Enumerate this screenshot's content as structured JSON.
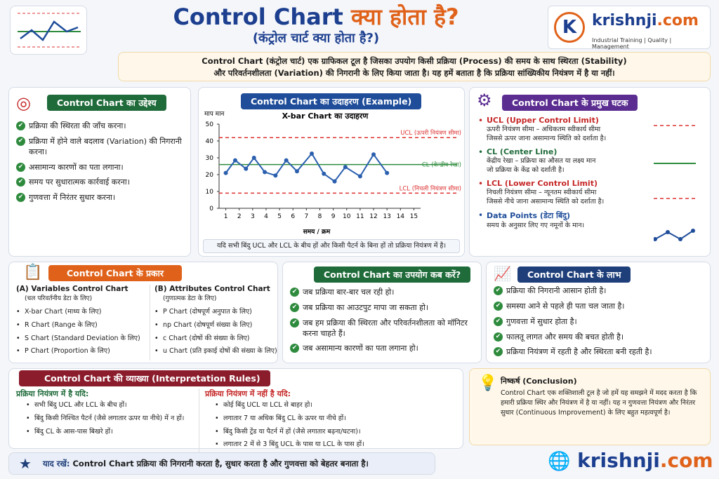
{
  "header": {
    "title_en": "Control Chart",
    "title_hi": "क्या होता है?",
    "subtitle": "(कंट्रोल चार्ट क्या होता है?)",
    "intro": [
      "Control Chart (कंट्रोल चार्ट) एक ग्राफिकल टूल है जिसका उपयोग किसी प्रक्रिया (Process) की समय के साथ स्थिरता (Stability)",
      "और परिवर्तनशीलता (Variation) की निगरानी के लिए किया जाता है। यह हमें बताता है कि प्रक्रिया सांख्यिकीय नियंत्रण में है या नहीं।"
    ]
  },
  "logo": {
    "letter": "K",
    "brand": "krishnji",
    "tld": ".com",
    "tagline": "Industrial Training | Quality | Management"
  },
  "objectives": {
    "title": "Control Chart का उद्देश्य",
    "items": [
      "प्रक्रिया की स्थिरता की जाँच करना।",
      "प्रक्रिया में होने वाले बदलाव (Variation) की निगरानी करना।",
      "असामान्य कारणों का पता लगाना।",
      "समय पर सुधारात्मक कार्रवाई करना।",
      "गुणवत्ता में निरंतर सुधार करना।"
    ]
  },
  "example": {
    "title": "Control Chart का उदाहरण (Example)",
    "note": "यदि सभी बिंदु UCL और LCL के बीच हों और किसी पैटर्न के बिना हों तो प्रक्रिया नियंत्रण में है।"
  },
  "chart_data": {
    "type": "line",
    "title": "X-bar Chart का उदाहरण",
    "y_label": "माप मान",
    "x_label": "समय / क्रम",
    "x": [
      1,
      1.7,
      2.5,
      3.1,
      3.9,
      4.7,
      5.5,
      6.3,
      7.4,
      8.3,
      9.1,
      9.9,
      11,
      12,
      13
    ],
    "series": [
      {
        "color": "#2a5fae",
        "values": [
          21,
          28.5,
          23.5,
          30,
          21.5,
          19.5,
          28.5,
          22,
          32.5,
          20.5,
          16,
          24.5,
          19,
          32,
          21
        ]
      }
    ],
    "ucl": 42,
    "cl": 26,
    "lcl": 9,
    "ucl_label": "UCL (ऊपरी नियंत्रण सीमा)",
    "cl_label": "CL (केन्द्रीय रेखा)",
    "lcl_label": "LCL (निचली नियंत्रण सीमा)",
    "xlim": [
      0.5,
      15.5
    ],
    "xticks": [
      1,
      2,
      3,
      4,
      5,
      6,
      7,
      8,
      9,
      10,
      11,
      12,
      13,
      14,
      15
    ],
    "ylim": [
      0,
      50
    ],
    "yticks": [
      0,
      10,
      20,
      30,
      40,
      50
    ]
  },
  "components": {
    "title": "Control Chart के प्रमुख घटक",
    "items": [
      {
        "name": "UCL (Upper Control Limit)",
        "desc": [
          "ऊपरी नियंत्रण सीमा – अधिकतम स्वीकार्य सीमा",
          "जिससे ऊपर जाना असामान्य स्थिति को दर्शाता है।"
        ]
      },
      {
        "name": "CL (Center Line)",
        "desc": [
          "केंद्रीय रेखा – प्रक्रिया का औसत या लक्ष्य मान",
          "जो प्रक्रिया के केंद्र को दर्शाती है।"
        ]
      },
      {
        "name": "LCL (Lower Control Limit)",
        "desc": [
          "निचली नियंत्रण सीमा – न्यूनतम स्वीकार्य सीमा",
          "जिससे नीचे जाना असामान्य स्थिति को दर्शाता है।"
        ]
      },
      {
        "name": "Data Points (डेटा बिंदु)",
        "desc": [
          "समय के अनुसार लिए गए नमूनों के मान।"
        ]
      }
    ]
  },
  "types": {
    "title": "Control Chart के प्रकार",
    "variables": {
      "heading": "(A) Variables Control Chart",
      "sub": "(चल परिवर्तनीय डेटा के लिए)",
      "items": [
        "X-bar Chart (माध्य के लिए)",
        "R Chart (Range के लिए)",
        "S Chart (Standard Deviation के लिए)",
        "P Chart (Proportion के लिए)"
      ]
    },
    "attributes": {
      "heading": "(B) Attributes Control Chart",
      "sub": "(गुणात्मक डेटा के लिए)",
      "items": [
        "P Chart (दोषपूर्ण अनुपात के लिए)",
        "np Chart (दोषपूर्ण संख्या के लिए)",
        "c Chart (दोषों की संख्या के लिए)",
        "u Chart (प्रति इकाई दोषों की संख्या के लिए)"
      ]
    }
  },
  "uses": {
    "title": "Control Chart का उपयोग कब करें?",
    "items": [
      "जब प्रक्रिया बार-बार चल रही हो।",
      "जब प्रक्रिया का आउटपुट मापा जा सकता हो।",
      "जब हम प्रक्रिया की स्थिरता और परिवर्तनशीलता को मॉनिटर करना चाहते हैं।",
      "जब असामान्य कारणों का पता लगाना हो।"
    ]
  },
  "benefits": {
    "title": "Control Chart के लाभ",
    "items": [
      "प्रक्रिया की निगरानी आसान होती है।",
      "समस्या आने से पहले ही पता चल जाता है।",
      "गुणवत्ता में सुधार होता है।",
      "फालतू लागत और समय की बचत होती है।",
      "प्रक्रिया नियंत्रण में रहती है और स्थिरता बनी रहती है।"
    ]
  },
  "interpretation": {
    "title": "Control Chart की व्याख्या (Interpretation Rules)",
    "in_control": {
      "heading": "प्रक्रिया नियंत्रण में है यदि:",
      "items": [
        "सभी बिंदु UCL और LCL के बीच हों।",
        "बिंदु किसी निश्चित पैटर्न (जैसे लगातार ऊपर या नीचे) में न हों।",
        "बिंदु CL के आस-पास बिखरे हों।"
      ]
    },
    "out_control": {
      "heading": "प्रक्रिया नियंत्रण में नहीं है यदि:",
      "items": [
        "कोई बिंदु UCL या LCL से बाहर हो।",
        "लगातार 7 या अधिक बिंदु CL के ऊपर या नीचे हों।",
        "बिंदु किसी ट्रेंड या पैटर्न में हों (जैसे लगातार बढ़ना/घटना)।",
        "लगातार 2 में से 3 बिंदु UCL के पास या LCL के पास हों।"
      ]
    }
  },
  "conclusion": {
    "title": "निष्कर्ष (Conclusion)",
    "text": "Control Chart एक शक्तिशाली टूल है जो हमें यह समझने में मदद करता है कि हमारी प्रक्रिया स्थिर और नियंत्रण में है या नहीं। यह न गुणवत्ता नियंत्रण और निरंतर सुधार (Continuous Improvement) के लिए बहुत महत्वपूर्ण है।"
  },
  "remember": {
    "label": "याद रखें:",
    "text": "Control Chart प्रक्रिया की निगरानी करता है, सुधार करता है और गुणवत्ता को बेहतर बनाता है।"
  },
  "footer": {
    "brand": "krishnji",
    "tld": ".com"
  }
}
